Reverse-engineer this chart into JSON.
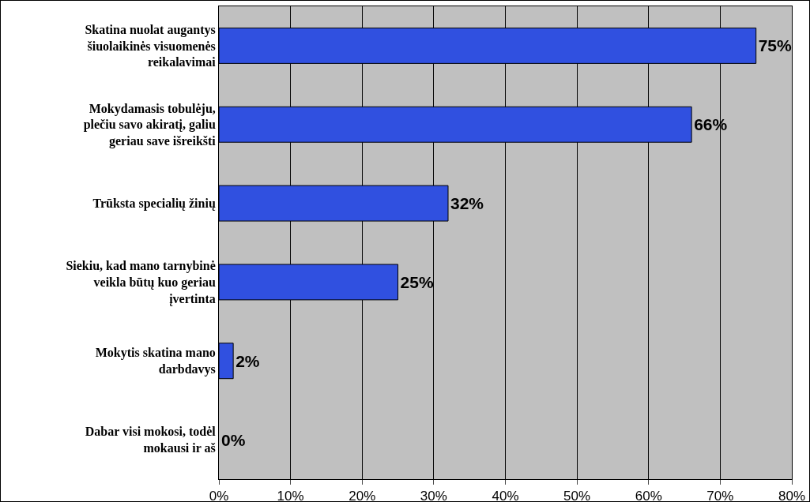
{
  "chart_data": {
    "type": "bar",
    "orientation": "horizontal",
    "categories": [
      "Skatina nuolat augantys šiuolaikinės visuomenės reikalavimai",
      "Mokydamasis tobulėju, plečiu savo akiratį, galiu geriau save išreikšti",
      "Trūksta specialių žinių",
      "Siekiu, kad mano tarnybinė veikla būtų kuo geriau įvertinta",
      "Mokytis skatina mano darbdavys",
      "Dabar visi mokosi, todėl mokausi ir aš"
    ],
    "values": [
      75,
      66,
      32,
      25,
      2,
      0
    ],
    "value_labels": [
      "75%",
      "66%",
      "32%",
      "25%",
      "2%",
      "0%"
    ],
    "color": "#3050e0",
    "xlim": [
      0,
      80
    ],
    "xticks": [
      {
        "value": 0,
        "label": "0%"
      },
      {
        "value": 10,
        "label": "10%"
      },
      {
        "value": 20,
        "label": "20%"
      },
      {
        "value": 30,
        "label": "30%"
      },
      {
        "value": 40,
        "label": "40%"
      },
      {
        "value": 50,
        "label": "50%"
      },
      {
        "value": 60,
        "label": "60%"
      },
      {
        "value": 70,
        "label": "70%"
      },
      {
        "value": 80,
        "label": "80%"
      }
    ],
    "grid": "x",
    "legend": false
  }
}
